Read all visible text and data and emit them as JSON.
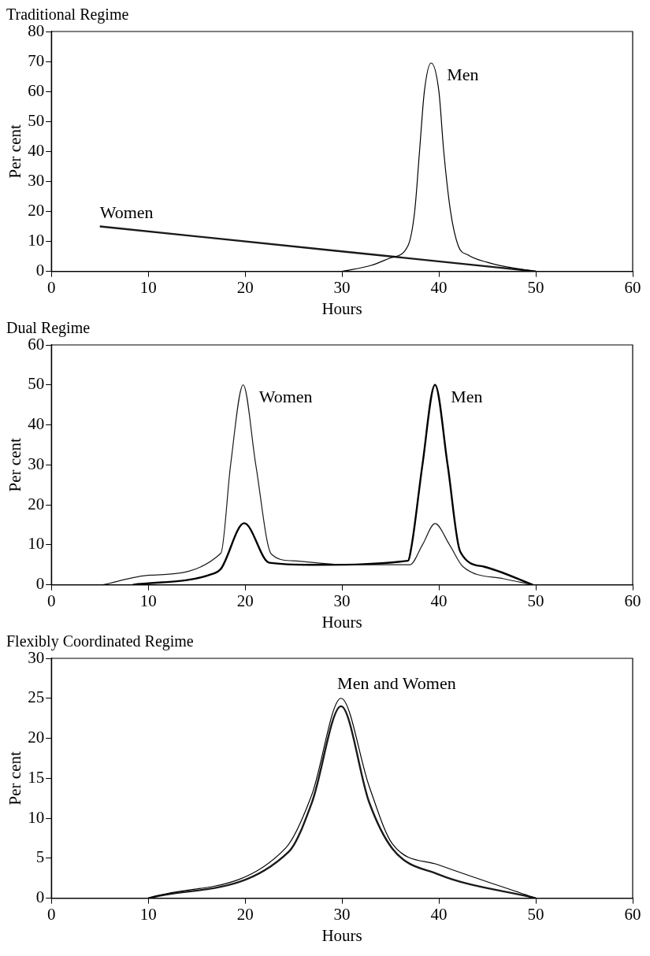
{
  "chart_data": [
    {
      "type": "line",
      "title": "Traditional Regime",
      "xlabel": "Hours",
      "ylabel": "Per cent",
      "xlim": [
        0,
        60
      ],
      "xticks": [
        0,
        10,
        20,
        30,
        40,
        50,
        60
      ],
      "ylim": [
        0,
        80
      ],
      "yticks": [
        0,
        10,
        20,
        30,
        40,
        50,
        60,
        70,
        80
      ],
      "grid": false,
      "legend": false,
      "marker": "none",
      "line_style": "solid",
      "series": [
        {
          "name": "Men",
          "color": "#000000",
          "x": [
            30,
            33,
            35,
            36.8,
            37.5,
            38,
            38.5,
            39.2,
            40,
            40.5,
            41.2,
            42,
            43,
            45,
            47,
            50
          ],
          "values": [
            0,
            2,
            4.5,
            8.5,
            20,
            40,
            60,
            69.5,
            60,
            40,
            20,
            8.5,
            5.5,
            3,
            1.5,
            0
          ]
        },
        {
          "name": "Women",
          "color": "#1a1a1a",
          "x": [
            5,
            50
          ],
          "values": [
            15,
            0
          ]
        }
      ]
    },
    {
      "type": "line",
      "title": "Dual Regime",
      "xlabel": "Hours",
      "ylabel": "Per cent",
      "xlim": [
        0,
        60
      ],
      "xticks": [
        0,
        10,
        20,
        30,
        40,
        50,
        60
      ],
      "ylim": [
        0,
        60
      ],
      "yticks": [
        0,
        10,
        20,
        30,
        40,
        50,
        60
      ],
      "grid": false,
      "legend": false,
      "marker": "none",
      "line_style": "solid",
      "series": [
        {
          "name": "Women",
          "color": "#1a1a1a",
          "x": [
            5.3,
            10.2,
            17.5,
            18.5,
            19.8,
            21.1,
            22.7,
            24.9,
            30.8,
            37,
            38.3,
            39.6,
            41.1,
            42.5,
            46.7,
            49.7
          ],
          "values": [
            0,
            2.4,
            7.9,
            30,
            50,
            30,
            7.7,
            6,
            5,
            5,
            10,
            15.3,
            10,
            4.5,
            1.5,
            0
          ]
        },
        {
          "name": "Men",
          "color": "#000000",
          "x": [
            8.4,
            16.6,
            17.5,
            19.9,
            22.5,
            26.9,
            36.8,
            37.2,
            38.3,
            39.6,
            40.9,
            42.2,
            44.7,
            49.7
          ],
          "values": [
            0,
            2.7,
            4,
            15.4,
            5.5,
            5,
            6,
            10,
            30,
            50,
            30,
            8.3,
            4.5,
            0
          ]
        }
      ]
    },
    {
      "type": "line",
      "title": "Flexibly Coordinated Regime",
      "xlabel": "Hours",
      "ylabel": "Per cent",
      "xlim": [
        0,
        60
      ],
      "xticks": [
        0,
        10,
        20,
        30,
        40,
        50,
        60
      ],
      "ylim": [
        0,
        30
      ],
      "yticks": [
        0,
        5,
        10,
        15,
        20,
        25,
        30
      ],
      "grid": false,
      "legend": false,
      "marker": "none",
      "line_style": "solid",
      "annotations": [
        {
          "text": "Men and Women",
          "x": 30,
          "y": 25
        }
      ],
      "series": [
        {
          "color": "#000000",
          "x": [
            10,
            24.2,
            26.9,
            29.9,
            32.8,
            35.2,
            39.9,
            50
          ],
          "values": [
            0,
            6.3,
            13,
            25,
            14,
            6.8,
            4.2,
            0
          ]
        },
        {
          "color": "#1a1a1a",
          "x": [
            10,
            24.5,
            26.9,
            29.9,
            32.8,
            35.2,
            39.9,
            50
          ],
          "values": [
            0,
            5.8,
            12,
            24,
            12,
            6.2,
            3,
            0
          ]
        }
      ]
    }
  ]
}
